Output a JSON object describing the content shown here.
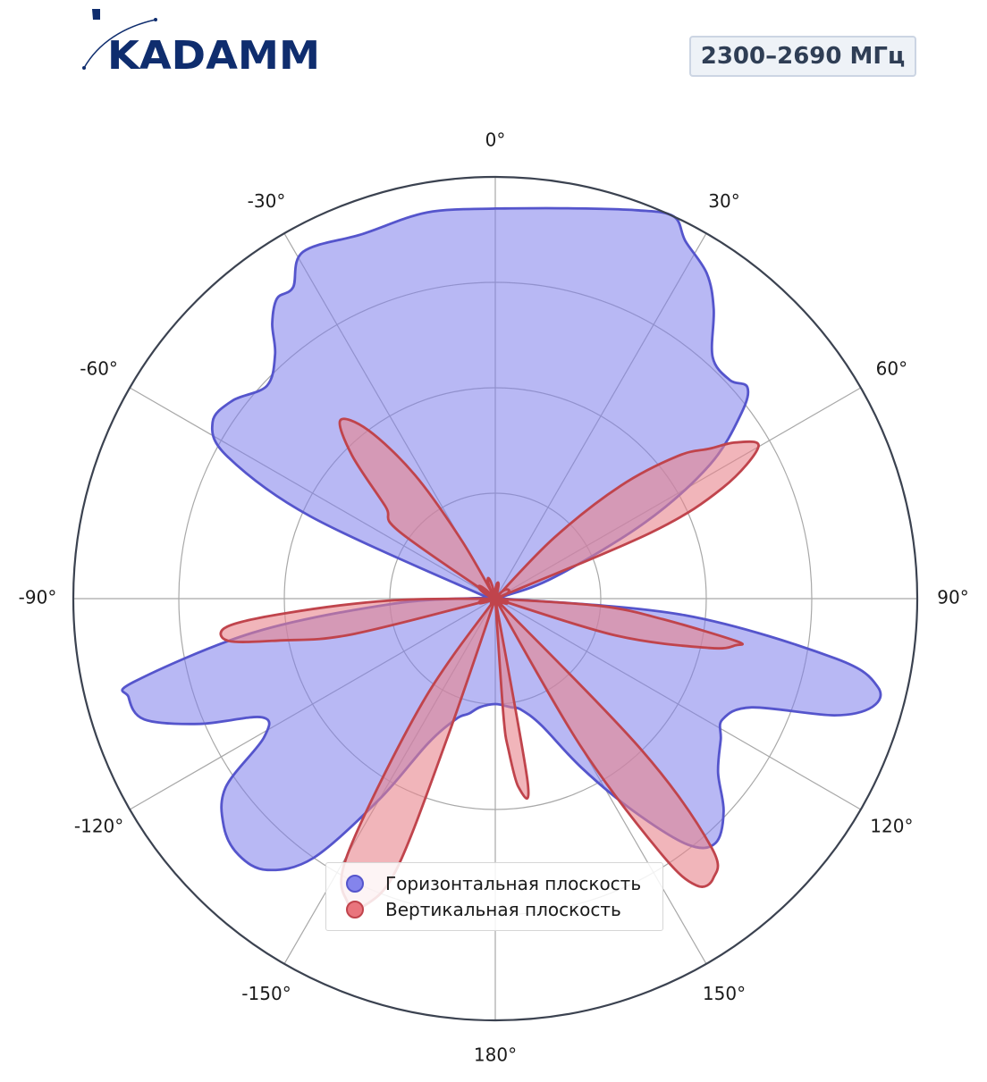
{
  "brand": {
    "logo_text": "KADAMM"
  },
  "band_label": "2300–2690 МГц",
  "chart_data": {
    "type": "polar-area",
    "angular_ticks": [
      "0°",
      "30°",
      "60°",
      "90°",
      "120°",
      "150°",
      "180°",
      "-150°",
      "-120°",
      "-90°",
      "-60°",
      "-30°"
    ],
    "radial_range": [
      0,
      1
    ],
    "radial_gridlines": [
      0.25,
      0.5,
      0.75
    ],
    "grid": true,
    "legend_position": "bottom-center",
    "series": [
      {
        "name": "Горизонтальная плоскость",
        "color": "#5555cc",
        "fill": "rgba(125,125,235,0.55)",
        "points": [
          [
            0,
            0.925
          ],
          [
            10,
            0.94
          ],
          [
            20,
            0.98
          ],
          [
            25,
            1.0
          ],
          [
            28,
            0.96
          ],
          [
            33,
            0.92
          ],
          [
            37,
            0.86
          ],
          [
            42,
            0.77
          ],
          [
            47,
            0.76
          ],
          [
            50,
            0.78
          ],
          [
            53,
            0.73
          ],
          [
            58,
            0.6
          ],
          [
            63,
            0.4
          ],
          [
            70,
            0.15
          ],
          [
            75,
            0.02
          ],
          [
            80,
            0.0
          ],
          [
            87,
            0.0
          ],
          [
            90,
            0.02
          ],
          [
            95,
            0.45
          ],
          [
            100,
            0.82
          ],
          [
            103,
            0.93
          ],
          [
            106,
            0.93
          ],
          [
            109,
            0.85
          ],
          [
            113,
            0.66
          ],
          [
            118,
            0.61
          ],
          [
            122,
            0.63
          ],
          [
            128,
            0.67
          ],
          [
            133,
            0.74
          ],
          [
            138,
            0.78
          ],
          [
            142,
            0.74
          ],
          [
            147,
            0.6
          ],
          [
            153,
            0.45
          ],
          [
            160,
            0.32
          ],
          [
            167,
            0.27
          ],
          [
            172,
            0.26
          ],
          [
            180,
            0.25
          ],
          [
            188,
            0.26
          ],
          [
            193,
            0.28
          ],
          [
            198,
            0.3
          ],
          [
            205,
            0.38
          ],
          [
            210,
            0.55
          ],
          [
            215,
            0.75
          ],
          [
            220,
            0.84
          ],
          [
            225,
            0.86
          ],
          [
            230,
            0.84
          ],
          [
            235,
            0.78
          ],
          [
            239,
            0.64
          ],
          [
            243,
            0.62
          ],
          [
            247,
            0.76
          ],
          [
            251,
            0.88
          ],
          [
            255,
            0.9
          ],
          [
            257,
            0.88
          ],
          [
            262,
            0.58
          ],
          [
            267,
            0.25
          ],
          [
            272,
            0.04
          ],
          [
            277,
            0.0
          ],
          [
            283,
            0.0
          ],
          [
            288,
            0.05
          ],
          [
            294,
            0.48
          ],
          [
            298,
            0.72
          ],
          [
            302,
            0.79
          ],
          [
            307,
            0.78
          ],
          [
            313,
            0.74
          ],
          [
            318,
            0.78
          ],
          [
            321,
            0.84
          ],
          [
            324,
            0.88
          ],
          [
            327,
            0.88
          ],
          [
            331,
            0.94
          ],
          [
            340,
            0.92
          ],
          [
            350,
            0.93
          ],
          [
            360,
            0.925
          ]
        ]
      },
      {
        "name": "Вертикальная плоскость",
        "color": "#c0444c",
        "fill": "rgba(232,132,140,0.6)",
        "points": [
          [
            0,
            0.0
          ],
          [
            38,
            0.0
          ],
          [
            44,
            0.2
          ],
          [
            48,
            0.4
          ],
          [
            52,
            0.55
          ],
          [
            55,
            0.62
          ],
          [
            57,
            0.68
          ],
          [
            60,
            0.72
          ],
          [
            64,
            0.6
          ],
          [
            67,
            0.4
          ],
          [
            73,
            0.0
          ],
          [
            90,
            0.0
          ],
          [
            94,
            0.25
          ],
          [
            97,
            0.4
          ],
          [
            100,
            0.58
          ],
          [
            101,
            0.58
          ],
          [
            103,
            0.52
          ],
          [
            107,
            0.3
          ],
          [
            110,
            0.0
          ],
          [
            130,
            0.0
          ],
          [
            136,
            0.5
          ],
          [
            139,
            0.78
          ],
          [
            142,
            0.84
          ],
          [
            145,
            0.83
          ],
          [
            147,
            0.72
          ],
          [
            150,
            0.4
          ],
          [
            153,
            0.0
          ],
          [
            162,
            0.0
          ],
          [
            170,
            0.44
          ],
          [
            173,
            0.45
          ],
          [
            175,
            0.36
          ],
          [
            176,
            0.28
          ],
          [
            180,
            0.0
          ],
          [
            196,
            0.0
          ],
          [
            199,
            0.35
          ],
          [
            200,
            0.68
          ],
          [
            203,
            0.79
          ],
          [
            206,
            0.8
          ],
          [
            210,
            0.7
          ],
          [
            215,
            0.3
          ],
          [
            218,
            0.0
          ],
          [
            250,
            0.0
          ],
          [
            256,
            0.35
          ],
          [
            259,
            0.52
          ],
          [
            261,
            0.64
          ],
          [
            264,
            0.64
          ],
          [
            266,
            0.5
          ],
          [
            269,
            0.25
          ],
          [
            272,
            0.0
          ],
          [
            296,
            0.0
          ],
          [
            305,
            0.28
          ],
          [
            310,
            0.34
          ],
          [
            315,
            0.48
          ],
          [
            319,
            0.56
          ],
          [
            323,
            0.5
          ],
          [
            327,
            0.35
          ],
          [
            330,
            0.16
          ],
          [
            335,
            0.0
          ],
          [
            360,
            0.0
          ]
        ]
      }
    ]
  }
}
